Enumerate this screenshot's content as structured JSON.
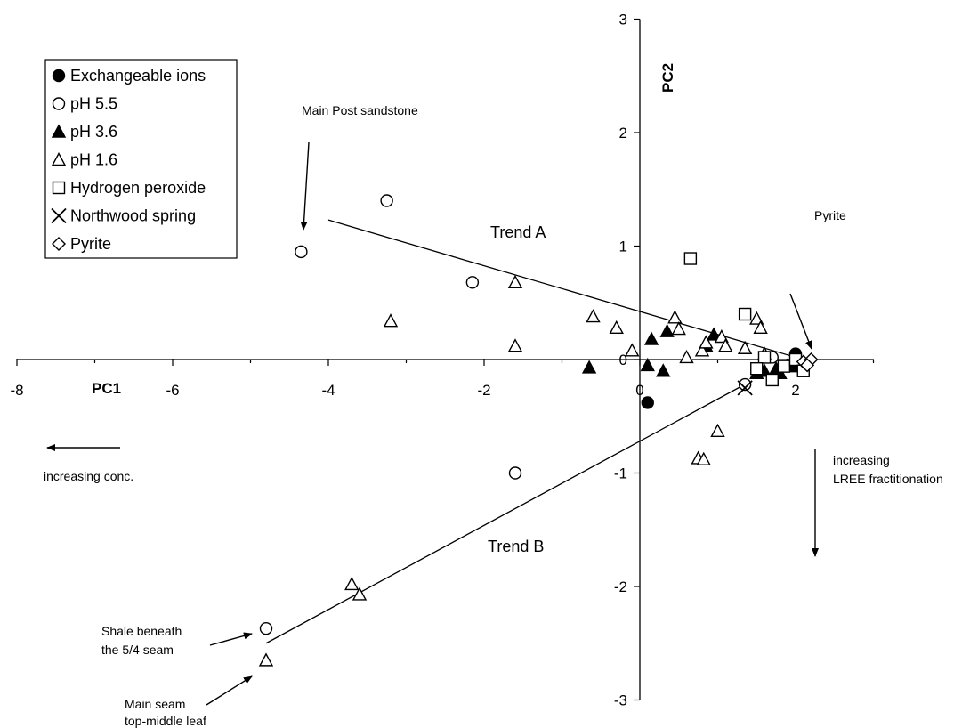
{
  "chart_data": {
    "type": "scatter",
    "title": "",
    "xlabel": "PC1",
    "ylabel": "PC2",
    "xlim": [
      -8,
      3.5
    ],
    "ylim": [
      -3,
      3
    ],
    "x_ticks": [
      "-8",
      "-6",
      "-4",
      "-2",
      "0",
      "2"
    ],
    "y_ticks": [
      "3",
      "2",
      "1",
      "0",
      "-1",
      "-2",
      "-3"
    ],
    "grid": false,
    "legend_position": "top-left",
    "series": [
      {
        "name": "Exchangeable ions",
        "marker": "filled-circle",
        "points": [
          [
            0.1,
            -0.38
          ],
          [
            2.0,
            0.05
          ]
        ]
      },
      {
        "name": "pH 5.5",
        "marker": "open-circle",
        "points": [
          [
            -4.35,
            0.95
          ],
          [
            -3.25,
            1.4
          ],
          [
            -2.15,
            0.68
          ],
          [
            -1.6,
            -1.0
          ],
          [
            -4.8,
            -2.37
          ],
          [
            1.35,
            -0.22
          ],
          [
            1.7,
            0.02
          ],
          [
            1.9,
            -0.05
          ],
          [
            2.05,
            -0.02
          ]
        ]
      },
      {
        "name": "pH 3.6",
        "marker": "filled-triangle",
        "points": [
          [
            -0.65,
            -0.07
          ],
          [
            0.15,
            0.18
          ],
          [
            0.1,
            -0.05
          ],
          [
            0.35,
            0.25
          ],
          [
            0.3,
            -0.1
          ],
          [
            0.95,
            0.22
          ],
          [
            0.85,
            0.12
          ],
          [
            1.5,
            -0.12
          ],
          [
            1.6,
            -0.1
          ],
          [
            1.75,
            -0.08
          ],
          [
            1.8,
            -0.12
          ],
          [
            1.9,
            -0.05
          ],
          [
            2.0,
            -0.06
          ]
        ]
      },
      {
        "name": "pH 1.6",
        "marker": "open-triangle",
        "points": [
          [
            -3.2,
            0.34
          ],
          [
            -1.6,
            0.68
          ],
          [
            -1.6,
            0.12
          ],
          [
            -0.6,
            0.38
          ],
          [
            -0.3,
            0.28
          ],
          [
            -0.1,
            0.08
          ],
          [
            0.45,
            0.37
          ],
          [
            0.5,
            0.27
          ],
          [
            0.6,
            0.02
          ],
          [
            0.8,
            0.08
          ],
          [
            0.85,
            0.15
          ],
          [
            1.05,
            0.2
          ],
          [
            1.1,
            0.12
          ],
          [
            1.35,
            0.1
          ],
          [
            1.5,
            0.36
          ],
          [
            1.55,
            0.28
          ],
          [
            1.6,
            0.05
          ],
          [
            1.0,
            -0.63
          ],
          [
            0.75,
            -0.87
          ],
          [
            0.82,
            -0.88
          ],
          [
            -3.7,
            -1.98
          ],
          [
            -3.6,
            -2.07
          ],
          [
            -4.8,
            -2.65
          ]
        ]
      },
      {
        "name": "Hydrogen peroxide",
        "marker": "open-square",
        "points": [
          [
            0.65,
            0.89
          ],
          [
            1.35,
            0.4
          ],
          [
            1.6,
            0.02
          ],
          [
            1.5,
            -0.08
          ],
          [
            1.7,
            -0.18
          ],
          [
            1.85,
            -0.06
          ],
          [
            2.0,
            0.0
          ],
          [
            2.1,
            -0.1
          ]
        ]
      },
      {
        "name": "Northwood spring",
        "marker": "x",
        "points": [
          [
            1.35,
            -0.25
          ]
        ]
      },
      {
        "name": "Pyrite",
        "marker": "open-diamond",
        "points": [
          [
            2.1,
            -0.02
          ],
          [
            2.2,
            0.0
          ],
          [
            2.15,
            -0.05
          ]
        ]
      }
    ],
    "trend_lines": [
      {
        "label": "Trend A",
        "from": [
          -4.0,
          1.23
        ],
        "to": [
          2.1,
          0.0
        ]
      },
      {
        "label": "Trend B",
        "from": [
          -4.8,
          -2.5
        ],
        "to": [
          1.4,
          -0.2
        ]
      }
    ],
    "annotations": {
      "main_post": "Main Post sandstone",
      "pyrite": "Pyrite",
      "shale_1": "Shale beneath",
      "shale_2": "the 5/4 seam",
      "main_seam_1": "Main seam",
      "main_seam_2": "top-middle leaf",
      "conc": "increasing conc.",
      "lree_1": "increasing",
      "lree_2": "LREE fractitionation"
    }
  }
}
